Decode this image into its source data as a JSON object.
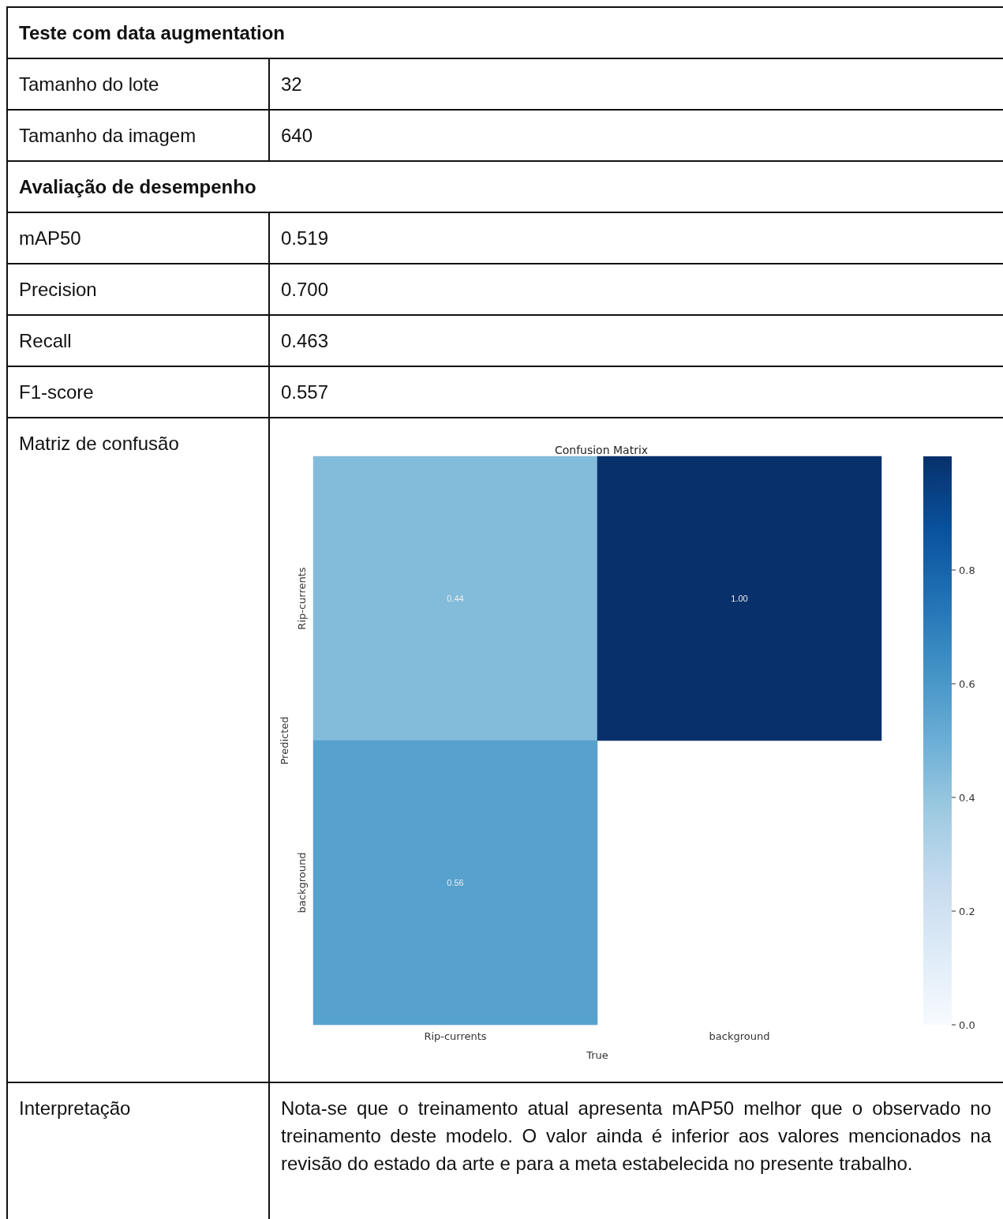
{
  "chart_data": [
    {
      "type": "other",
      "title": "Teste com data augmentation",
      "annotations": [
        "Tamanho do lote",
        "32",
        "Tamanho da imagem",
        "640"
      ]
    },
    {
      "type": "other",
      "title": "Avaliação de desempenho",
      "annotations": [
        "mAP50",
        "0.519",
        "Precision",
        "0.700",
        "Recall",
        "0.463",
        "F1-score",
        "0.557",
        "Matriz de confusão"
      ]
    },
    {
      "type": "heatmap",
      "title": "Confusion Matrix",
      "xlabel": "True",
      "ylabel": "Predicted",
      "categories": [
        "Rip-currents",
        "background"
      ],
      "y_categories": [
        "Rip-currents",
        "background"
      ],
      "cells": [
        [
          0.44,
          1.0
        ],
        [
          0.56,
          null
        ]
      ],
      "cell_labels": [
        [
          "0.44",
          "1.00"
        ],
        [
          "0.56",
          null
        ]
      ],
      "clim": [
        0,
        1
      ],
      "cticks": [
        {
          "value": 0,
          "label": "0.0"
        },
        {
          "value": 0.2,
          "label": "0.2"
        },
        {
          "value": 0.4,
          "label": "0.4"
        },
        {
          "value": 0.6,
          "label": "0.6"
        },
        {
          "value": 0.8,
          "label": "0.8"
        }
      ]
    },
    {
      "type": "other",
      "annotations": [
        "Interpretação",
        "Nota-se que o treinamento atual apresenta mAP50 melhor que o observado no treinamento deste modelo. O valor ainda é inferior aos valores mencionados na revisão do estado da arte e para a meta estabelecida no presente trabalho."
      ]
    }
  ]
}
